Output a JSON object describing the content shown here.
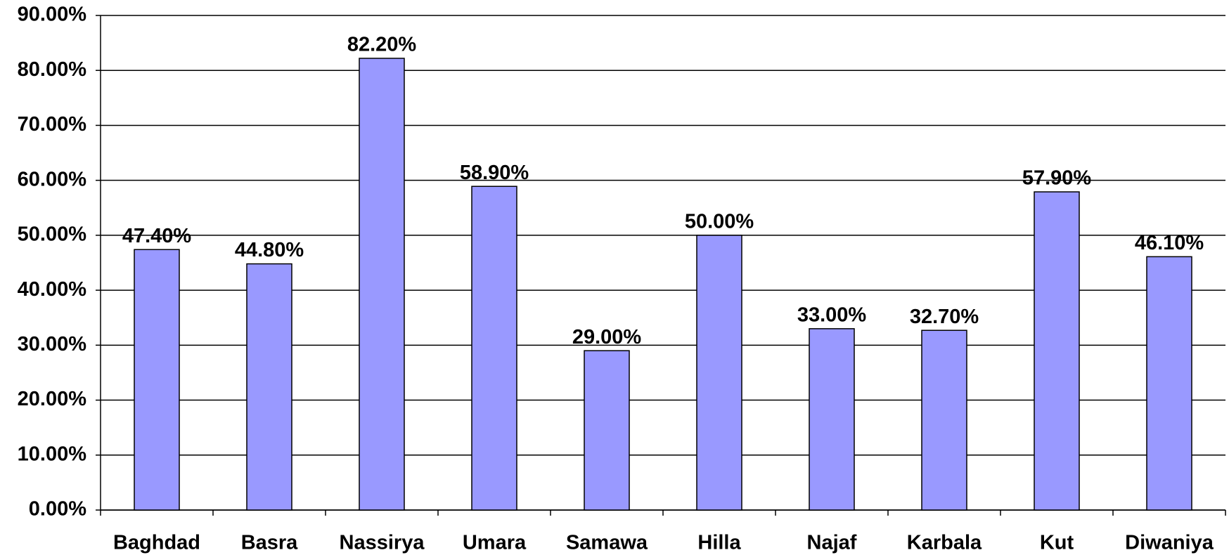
{
  "chart_data": {
    "type": "bar",
    "categories": [
      "Baghdad",
      "Basra",
      "Nassirya",
      "Umara",
      "Samawa",
      "Hilla",
      "Najaf",
      "Karbala",
      "Kut",
      "Diwaniya"
    ],
    "values": [
      47.4,
      44.8,
      82.2,
      58.9,
      29.0,
      50.0,
      33.0,
      32.7,
      57.9,
      46.1
    ],
    "value_labels": [
      "47.40%",
      "44.80%",
      "82.20%",
      "58.90%",
      "29.00%",
      "50.00%",
      "33.00%",
      "32.70%",
      "57.90%",
      "46.10%"
    ],
    "color": "#9999ff",
    "ylim": [
      0,
      90
    ],
    "yticks": [
      {
        "value": 0,
        "label": "0.00%"
      },
      {
        "value": 10,
        "label": "10.00%"
      },
      {
        "value": 20,
        "label": "20.00%"
      },
      {
        "value": 30,
        "label": "30.00%"
      },
      {
        "value": 40,
        "label": "40.00%"
      },
      {
        "value": 50,
        "label": "50.00%"
      },
      {
        "value": 60,
        "label": "60.00%"
      },
      {
        "value": 70,
        "label": "70.00%"
      },
      {
        "value": 80,
        "label": "80.00%"
      },
      {
        "value": 90,
        "label": "90.00%"
      }
    ],
    "grid": true
  }
}
